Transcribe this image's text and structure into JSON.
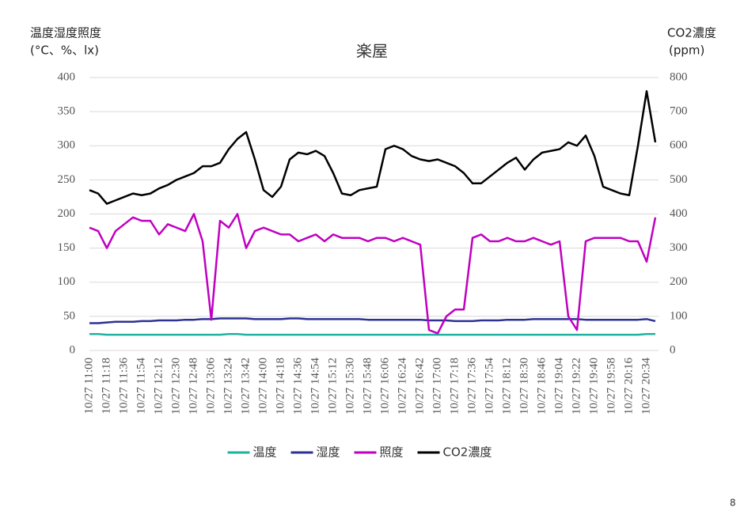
{
  "chart_data": {
    "type": "line",
    "title": "楽屋",
    "y_label": [
      "温度湿度照度",
      "(°C、%、lx)"
    ],
    "y2_label": [
      "CO2濃度",
      "(ppm)"
    ],
    "page_number": "8",
    "categories": [
      "10/27 11:00",
      null,
      "10/27 11:18",
      null,
      "10/27 11:36",
      null,
      "10/27 11:54",
      null,
      "10/27 12:12",
      null,
      "10/27 12:30",
      null,
      "10/27 12:48",
      null,
      "10/27 13:06",
      null,
      "10/27 13:24",
      null,
      "10/27 13:42",
      null,
      "10/27 14:00",
      null,
      "10/27 14:18",
      null,
      "10/27 14:36",
      null,
      "10/27 14:54",
      null,
      "10/27 15:12",
      null,
      "10/27 15:30",
      null,
      "10/27 15:48",
      null,
      "10/27 16:06",
      null,
      "10/27 16:24",
      null,
      "10/27 16:42",
      null,
      "10/27 17:00",
      null,
      "10/27 17:18",
      null,
      "10/27 17:36",
      null,
      "10/27 17:54",
      null,
      "10/27 18:12",
      null,
      "10/27 18:30",
      null,
      "10/27 18:46",
      null,
      "10/27 19:04",
      null,
      "10/27 19:22",
      null,
      "10/27 19:40",
      null,
      "10/27 19:58",
      null,
      "10/27 20:16",
      null,
      "10/27 20:34",
      null
    ],
    "series": [
      {
        "name": "温度",
        "color": "#20b2a0",
        "values": [
          24,
          24,
          23,
          23,
          23,
          23,
          23,
          23,
          23,
          23,
          23,
          23,
          23,
          23,
          23,
          23,
          24,
          24,
          23,
          23,
          23,
          23,
          23,
          23,
          23,
          23,
          23,
          23,
          23,
          23,
          23,
          23,
          23,
          23,
          23,
          23,
          23,
          23,
          23,
          23,
          23,
          23,
          23,
          23,
          23,
          23,
          23,
          23,
          23,
          23,
          23,
          23,
          23,
          23,
          23,
          23,
          23,
          23,
          23,
          23,
          23,
          23,
          23,
          23,
          24,
          24
        ]
      },
      {
        "name": "湿度",
        "color": "#2e3192",
        "values": [
          40,
          40,
          41,
          42,
          42,
          42,
          43,
          43,
          44,
          44,
          44,
          45,
          45,
          46,
          46,
          47,
          47,
          47,
          47,
          46,
          46,
          46,
          46,
          47,
          47,
          46,
          46,
          46,
          46,
          46,
          46,
          46,
          45,
          45,
          45,
          45,
          45,
          45,
          45,
          44,
          44,
          44,
          43,
          43,
          43,
          44,
          44,
          44,
          45,
          45,
          45,
          46,
          46,
          46,
          46,
          46,
          46,
          45,
          45,
          45,
          45,
          45,
          45,
          45,
          46,
          43
        ]
      },
      {
        "name": "照度",
        "color": "#c000c0",
        "values": [
          180,
          175,
          150,
          175,
          185,
          195,
          190,
          190,
          170,
          185,
          180,
          175,
          200,
          160,
          45,
          190,
          180,
          200,
          150,
          175,
          180,
          175,
          170,
          170,
          160,
          165,
          170,
          160,
          170,
          165,
          165,
          165,
          160,
          165,
          165,
          160,
          165,
          160,
          155,
          30,
          25,
          50,
          60,
          60,
          165,
          170,
          160,
          160,
          165,
          160,
          160,
          165,
          160,
          155,
          160,
          50,
          30,
          160,
          165,
          165,
          165,
          165,
          160,
          160,
          130,
          195
        ]
      },
      {
        "name": "CO2濃度",
        "color": "#000000",
        "axis": "y2",
        "values": [
          470,
          460,
          430,
          440,
          450,
          460,
          455,
          460,
          475,
          485,
          500,
          510,
          520,
          540,
          540,
          550,
          590,
          620,
          640,
          560,
          470,
          450,
          480,
          560,
          580,
          575,
          585,
          570,
          520,
          460,
          455,
          470,
          475,
          480,
          590,
          600,
          590,
          570,
          560,
          555,
          560,
          550,
          540,
          520,
          490,
          490,
          510,
          530,
          550,
          565,
          530,
          560,
          580,
          585,
          590,
          610,
          600,
          630,
          570,
          480,
          470,
          460,
          455,
          600,
          760,
          610
        ]
      }
    ],
    "ylim": [
      0,
      400
    ],
    "yticks": [
      0,
      50,
      100,
      150,
      200,
      250,
      300,
      350,
      400
    ],
    "y2lim": [
      0,
      800
    ],
    "y2ticks": [
      0,
      100,
      200,
      300,
      400,
      500,
      600,
      700,
      800
    ],
    "grid": true
  }
}
